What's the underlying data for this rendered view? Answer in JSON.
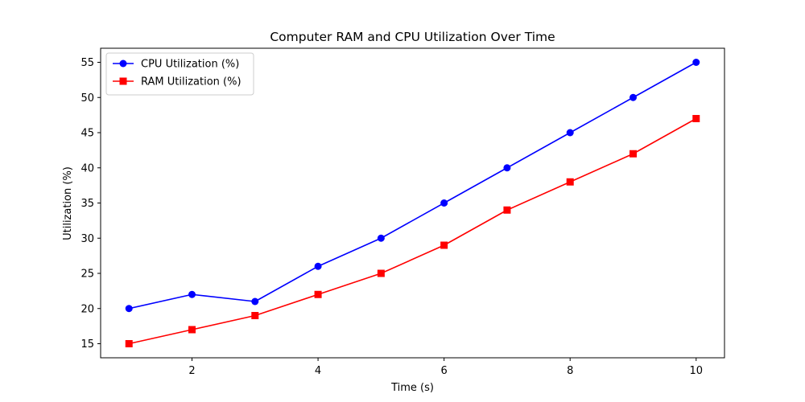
{
  "chart_data": {
    "type": "line",
    "title": "Computer RAM and CPU Utilization Over Time",
    "xlabel": "Time (s)",
    "ylabel": "Utilization (%)",
    "xlim": [
      0.55,
      10.45
    ],
    "ylim": [
      13.0,
      57.0
    ],
    "xticks": [
      2,
      4,
      6,
      8,
      10
    ],
    "yticks": [
      15,
      20,
      25,
      30,
      35,
      40,
      45,
      50,
      55
    ],
    "grid": false,
    "legend_position": "top-left",
    "x": [
      1,
      2,
      3,
      4,
      5,
      6,
      7,
      8,
      9,
      10
    ],
    "series": [
      {
        "name": "CPU Utilization (%)",
        "values": [
          20,
          22,
          21,
          26,
          30,
          35,
          40,
          45,
          50,
          55
        ],
        "color": "#0000ff",
        "marker": "circle"
      },
      {
        "name": "RAM Utilization (%)",
        "values": [
          15,
          17,
          19,
          22,
          25,
          29,
          34,
          38,
          42,
          47
        ],
        "color": "#ff0000",
        "marker": "square"
      }
    ]
  }
}
